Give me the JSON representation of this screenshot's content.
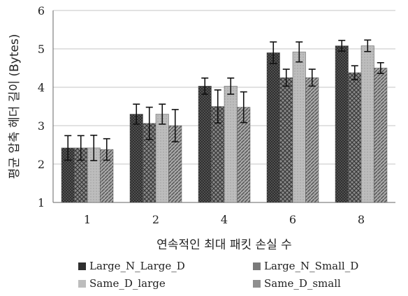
{
  "chart_data": {
    "type": "bar",
    "xlabel": "연속적인 최대 패킷 손실 수",
    "ylabel": "평균 압축 헤더 길이 (Bytes)",
    "ylim": [
      1,
      6
    ],
    "yticks": [
      1,
      2,
      3,
      4,
      5,
      6
    ],
    "grid": true,
    "legend": "bottom",
    "categories": [
      "1",
      "2",
      "4",
      "6",
      "8"
    ],
    "series": [
      {
        "name": "Large_N_Large_D",
        "values": [
          2.42,
          3.3,
          4.03,
          4.9,
          5.08
        ],
        "errors": [
          0.32,
          0.26,
          0.21,
          0.28,
          0.14
        ],
        "color": "#3a3a3a",
        "pattern": "dots"
      },
      {
        "name": "Large_N_Small_D",
        "values": [
          2.42,
          3.06,
          3.5,
          4.25,
          4.38
        ],
        "errors": [
          0.32,
          0.42,
          0.43,
          0.22,
          0.18
        ],
        "color": "#6a6a6a",
        "pattern": "cross"
      },
      {
        "name": "Same_D_large",
        "values": [
          2.42,
          3.3,
          4.03,
          4.92,
          5.08
        ],
        "errors": [
          0.33,
          0.26,
          0.21,
          0.26,
          0.15
        ],
        "color": "#b5b5b5",
        "pattern": "light"
      },
      {
        "name": "Same_D_small",
        "values": [
          2.38,
          3.0,
          3.48,
          4.25,
          4.5
        ],
        "errors": [
          0.28,
          0.42,
          0.4,
          0.22,
          0.14
        ],
        "color": "#8c8c8c",
        "pattern": "diag"
      }
    ]
  }
}
